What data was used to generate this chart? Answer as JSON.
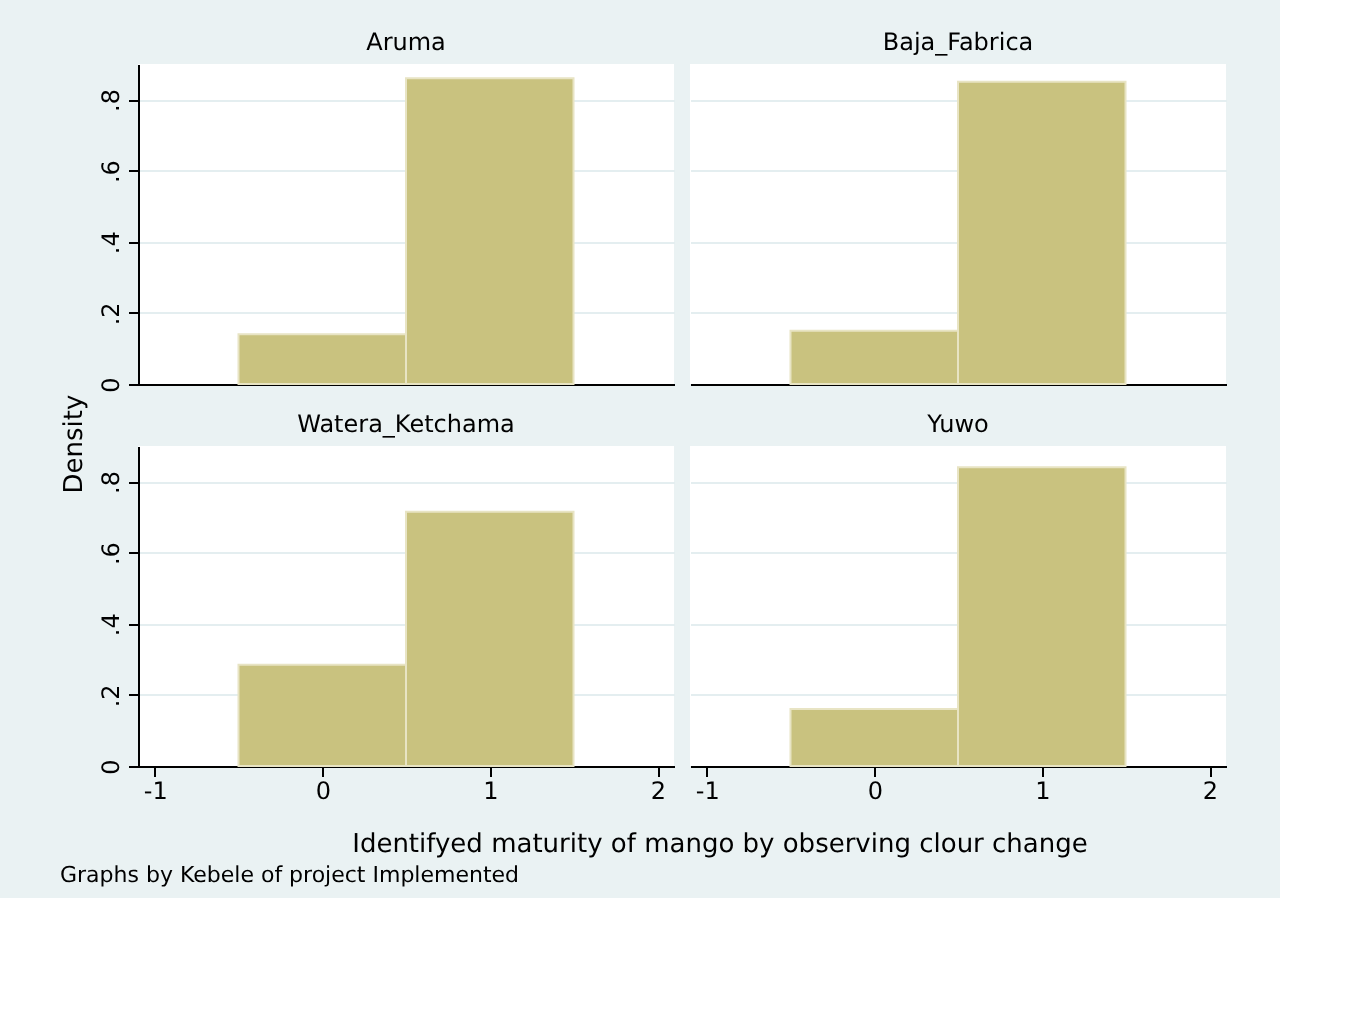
{
  "chart_data": [
    {
      "type": "histogram",
      "title": "Aruma",
      "ylabel": "Density",
      "bins": [
        -0.5,
        0.5,
        1.5
      ],
      "values": [
        0.14,
        0.86
      ],
      "color": "#c9c27f",
      "xlim": [
        -1.1,
        2.1
      ],
      "ylim": [
        0,
        0.9
      ],
      "yticks": [
        0,
        {
          "value": 0.2,
          "label": ".2"
        },
        {
          "value": 0.4,
          "label": ".4"
        },
        {
          "value": 0.6,
          "label": ".6"
        },
        {
          "value": 0.8,
          "label": ".8"
        }
      ],
      "grid": "y",
      "tick_labels": "y"
    },
    {
      "type": "histogram",
      "title": "Baja_Fabrica",
      "bins": [
        -0.5,
        0.5,
        1.5
      ],
      "values": [
        0.15,
        0.85
      ],
      "color": "#c9c27f",
      "xlim": [
        -1.1,
        2.1
      ],
      "ylim": [
        0,
        0.9
      ],
      "yticks": [
        {
          "value": 0,
          "label": null
        },
        {
          "value": 0.2,
          "label": null
        },
        {
          "value": 0.4,
          "label": null
        },
        {
          "value": 0.6,
          "label": null
        },
        {
          "value": 0.8,
          "label": null
        }
      ],
      "grid": "y",
      "tick_labels": false
    },
    {
      "type": "histogram",
      "title": "Watera_Ketchama",
      "xlabel": "Identifyed maturity of mango by observing clour change",
      "annotations": [
        "Graphs by Kebele of project Implemented"
      ],
      "bins": [
        -0.5,
        0.5,
        1.5
      ],
      "values": [
        0.285,
        0.715
      ],
      "color": "#c9c27f",
      "xlim": [
        -1.1,
        2.1
      ],
      "xticks": [
        -1,
        0,
        1,
        2
      ],
      "ylim": [
        0,
        0.9
      ],
      "yticks": [
        0,
        {
          "value": 0.2,
          "label": ".2"
        },
        {
          "value": 0.4,
          "label": ".4"
        },
        {
          "value": 0.6,
          "label": ".6"
        },
        {
          "value": 0.8,
          "label": ".8"
        }
      ],
      "grid": "y"
    },
    {
      "type": "histogram",
      "title": "Yuwo",
      "bins": [
        -0.5,
        0.5,
        1.5
      ],
      "values": [
        0.16,
        0.84
      ],
      "color": "#c9c27f",
      "xlim": [
        -1.1,
        2.1
      ],
      "xticks": [
        -1,
        0,
        1,
        2
      ],
      "ylim": [
        0,
        0.9
      ],
      "yticks": [
        {
          "value": 0,
          "label": null
        },
        {
          "value": 0.2,
          "label": null
        },
        {
          "value": 0.4,
          "label": null
        },
        {
          "value": 0.6,
          "label": null
        },
        {
          "value": 0.8,
          "label": null
        }
      ],
      "grid": "y",
      "tick_labels": "x"
    }
  ]
}
